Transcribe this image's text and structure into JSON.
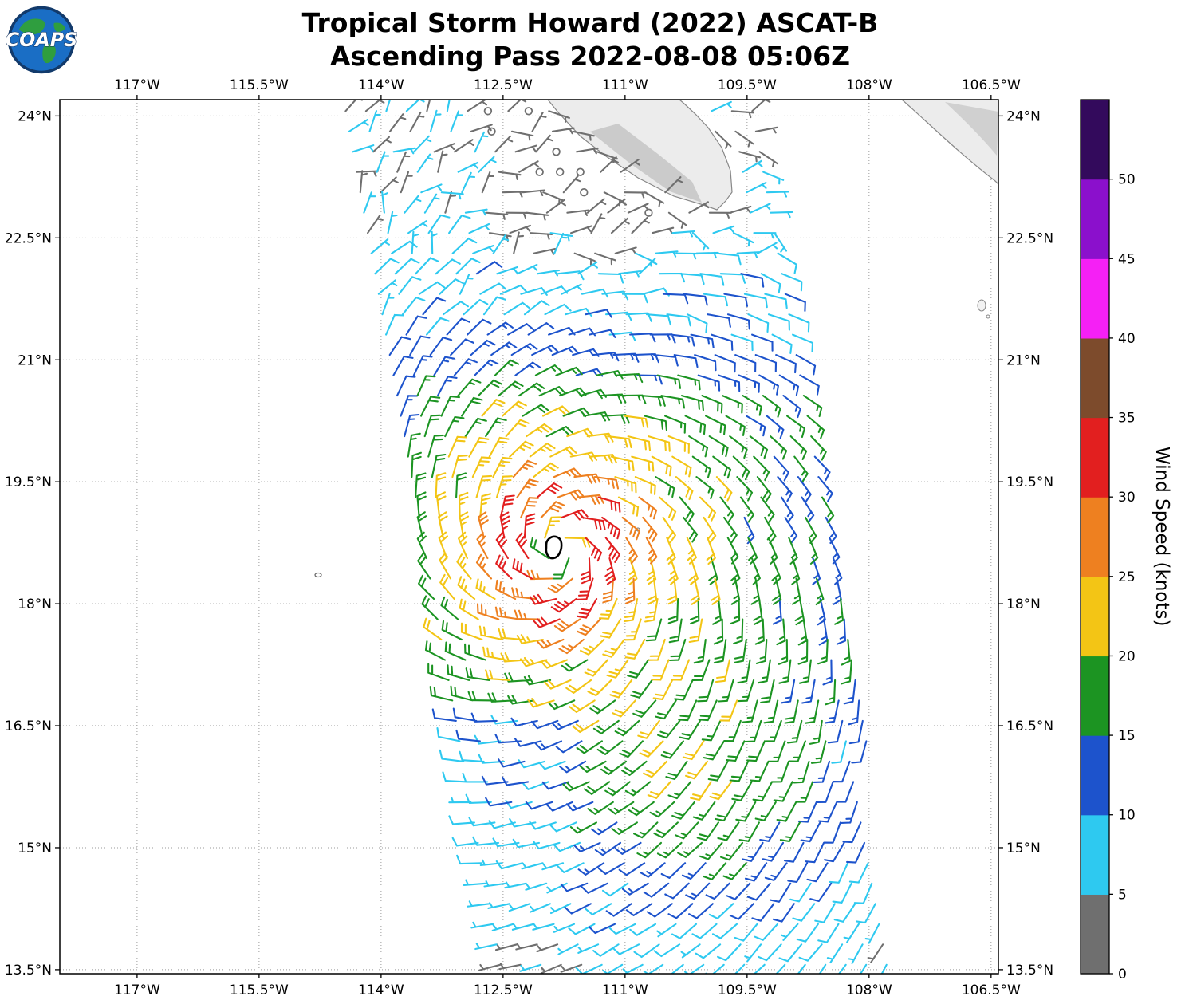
{
  "title": "Tropical Storm Howard (2022) ASCAT-B",
  "subtitle": "Ascending Pass 2022-08-08 05:06Z",
  "logo": {
    "text": "COAPS"
  },
  "chart_data": {
    "type": "wind_barb_map",
    "title": "Tropical Storm Howard (2022) ASCAT-B",
    "subtitle": "Ascending Pass 2022-08-08 05:06Z",
    "x_axis": {
      "tick_values": [
        117,
        115.5,
        114,
        112.5,
        111,
        109.5,
        108,
        106.5
      ],
      "tick_labels": [
        "117°W",
        "115.5°W",
        "114°W",
        "112.5°W",
        "111°W",
        "109.5°W",
        "108°W",
        "106.5°W"
      ],
      "range_deg_w": [
        117.95,
        106.41
      ],
      "shown": "top_and_bottom"
    },
    "y_axis": {
      "tick_values": [
        24,
        22.5,
        21,
        19.5,
        18,
        16.5,
        15,
        13.5
      ],
      "tick_labels": [
        "24°N",
        "22.5°N",
        "21°N",
        "19.5°N",
        "18°N",
        "16.5°N",
        "15°N",
        "13.5°N"
      ],
      "range_deg_n": [
        13.45,
        24.2
      ],
      "shown": "left_and_right"
    },
    "colorbar": {
      "label": "Wind Speed (knots)",
      "tick_values": [
        0,
        5,
        10,
        15,
        20,
        25,
        30,
        35,
        40,
        45,
        50
      ],
      "tick_labels": [
        "0",
        "5",
        "10",
        "15",
        "20",
        "25",
        "30",
        "35",
        "40",
        "45",
        "50"
      ],
      "bin_size_kt": 5,
      "max_kt": 55,
      "colors": [
        "#6f6f6f",
        "#2ec9f0",
        "#1d53cc",
        "#1c9422",
        "#f3c515",
        "#ee8020",
        "#e21f1f",
        "#7d4b2c",
        "#f520f5",
        "#8b10cc",
        "#330a5c"
      ]
    },
    "storm": {
      "name": "Howard",
      "year": 2022,
      "sensor": "ASCAT-B",
      "pass": "Ascending",
      "datetime_utc": "2022-08-08 05:06Z",
      "center_lon_w": 111.8,
      "center_lat_n": 18.65,
      "max_wind_kt": 33,
      "radius_max_wind_deg": 0.55,
      "rotation": "counterclockwise",
      "inflow_deg": 20
    },
    "swath": {
      "base_lat": 13.5,
      "left_base": 112.6,
      "left_slope": 0.181,
      "right_base": 107.55,
      "right_slope": 0.172,
      "width_deg": 5.0
    },
    "barb_grid_spacing_deg": 0.25,
    "features": {
      "calm_circles_north": true,
      "land": "Baja California Sur peninsula and Sinaloa coast (top right), gray terrain shading",
      "islands": [
        "Islas Marías"
      ],
      "center_contour": true,
      "grid": "dotted gray graticule at labeled ticks"
    }
  }
}
